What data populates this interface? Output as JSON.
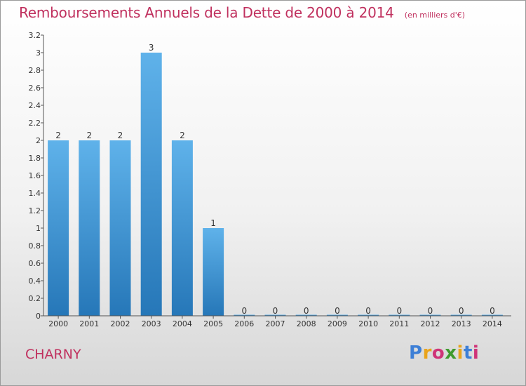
{
  "title": "Remboursements Annuels de la Dette de 2000 à 2014",
  "unit": "(en milliers d'€)",
  "commune": "CHARNY",
  "logo": {
    "letters": [
      "P",
      "r",
      "o",
      "x",
      "i",
      "t",
      "i"
    ],
    "colors": [
      "#3d7fd6",
      "#e9a41c",
      "#cf3478",
      "#3f9b2e",
      "#e9a41c",
      "#3d7fd6",
      "#cf3478"
    ]
  },
  "colors": {
    "title": "#c0305e",
    "bar_top": "#5fb2ea",
    "bar_bottom": "#2677b8",
    "axis": "#555555"
  },
  "chart_data": {
    "type": "bar",
    "title": "Remboursements Annuels de la Dette de 2000 à 2014",
    "categories": [
      "2000",
      "2001",
      "2002",
      "2003",
      "2004",
      "2005",
      "2006",
      "2007",
      "2008",
      "2009",
      "2010",
      "2011",
      "2012",
      "2013",
      "2014"
    ],
    "values": [
      2,
      2,
      2,
      3,
      2,
      1,
      0,
      0,
      0,
      0,
      0,
      0,
      0,
      0,
      0
    ],
    "data_labels": [
      "2",
      "2",
      "2",
      "3",
      "2",
      "1",
      "0",
      "0",
      "0",
      "0",
      "0",
      "0",
      "0",
      "0",
      "0"
    ],
    "yticks": [
      0,
      0.2,
      0.4,
      0.6,
      0.8,
      1,
      1.2,
      1.4,
      1.6,
      1.8,
      2,
      2.2,
      2.4,
      2.6,
      2.8,
      3,
      3.2
    ],
    "ytick_labels": [
      "0",
      "0.2",
      "0.4",
      "0.6",
      "0.8",
      "1",
      "1.2",
      "1.4",
      "1.6",
      "1.8",
      "2",
      "2.2",
      "2.4",
      "2.6",
      "2.8",
      "3",
      "3.2"
    ],
    "ylim": [
      0,
      3.2
    ],
    "xlabel": "",
    "ylabel": "",
    "grid": false,
    "legend": "none"
  }
}
